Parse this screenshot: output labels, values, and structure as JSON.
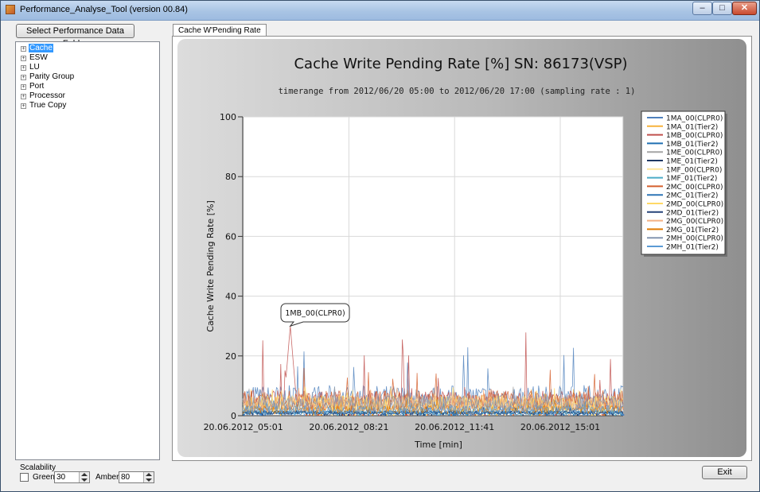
{
  "window": {
    "title": "Performance_Analyse_Tool (version 00.84)",
    "controls": {
      "minimize": "–",
      "maximize": "□",
      "close": "✕"
    }
  },
  "left_panel": {
    "select_button": "Select  Performance Data Folder",
    "tree": [
      {
        "label": "Cache",
        "selected": true
      },
      {
        "label": "ESW",
        "selected": false
      },
      {
        "label": "LU",
        "selected": false
      },
      {
        "label": "Parity Group",
        "selected": false
      },
      {
        "label": "Port",
        "selected": false
      },
      {
        "label": "Processor",
        "selected": false
      },
      {
        "label": "True Copy",
        "selected": false
      }
    ],
    "scalability": {
      "title": "Scalability",
      "checked": false,
      "green_label": "Green",
      "green_value": "30",
      "amber_label": "Amber",
      "amber_value": "80"
    }
  },
  "tabs": [
    {
      "label": "Cache W'Pending Rate",
      "active": true
    }
  ],
  "exit_button": "Exit",
  "chart_data": {
    "type": "line",
    "title": "Cache Write Pending Rate [%]  SN: 86173(VSP)",
    "subtitle": "timerange from 2012/06/20 05:00 to 2012/06/20 17:00 (sampling rate : 1)",
    "xlabel": "Time [min]",
    "ylabel": "Cache Write Pending Rate [%]",
    "ylim": [
      0,
      100
    ],
    "yticks": [
      0,
      20,
      40,
      60,
      80,
      100
    ],
    "xlim_minutes": [
      0,
      720
    ],
    "xticks": [
      {
        "label": "20.06.2012_05:01",
        "minute": 1
      },
      {
        "label": "20.06.2012_08:21",
        "minute": 201
      },
      {
        "label": "20.06.2012_11:41",
        "minute": 401
      },
      {
        "label": "20.06.2012_15:01",
        "minute": 601
      }
    ],
    "grid": true,
    "legend_position": "right",
    "annotation": {
      "text": "1MB_00(CLPR0)",
      "series": "1MB_00(CLPR0)",
      "minute": 90,
      "value": 30
    },
    "series": [
      {
        "name": "1MA_00(CLPR0)",
        "color": "#4f81bd",
        "typical": 6,
        "peak": 23
      },
      {
        "name": "1MA_01(Tier2)",
        "color": "#f7b23b",
        "typical": 3,
        "peak": 9
      },
      {
        "name": "1MB_00(CLPR0)",
        "color": "#c0504d",
        "typical": 5,
        "peak": 30
      },
      {
        "name": "1MB_01(Tier2)",
        "color": "#1f6fb2",
        "typical": 1,
        "peak": 4
      },
      {
        "name": "1ME_00(CLPR0)",
        "color": "#a5a5a5",
        "typical": 4,
        "peak": 10
      },
      {
        "name": "1ME_01(Tier2)",
        "color": "#1f3864",
        "typical": 1,
        "peak": 3
      },
      {
        "name": "1MF_00(CLPR0)",
        "color": "#ffe699",
        "typical": 4,
        "peak": 9
      },
      {
        "name": "1MF_01(Tier2)",
        "color": "#4bacc6",
        "typical": 1,
        "peak": 3
      },
      {
        "name": "2MC_00(CLPR0)",
        "color": "#d55f2c",
        "typical": 5,
        "peak": 16
      },
      {
        "name": "2MC_01(Tier2)",
        "color": "#2e75b6",
        "typical": 1,
        "peak": 3
      },
      {
        "name": "2MD_00(CLPR0)",
        "color": "#ffd966",
        "typical": 4,
        "peak": 10
      },
      {
        "name": "2MD_01(Tier2)",
        "color": "#264478",
        "typical": 1,
        "peak": 3
      },
      {
        "name": "2MG_00(CLPR0)",
        "color": "#f4b183",
        "typical": 4,
        "peak": 10
      },
      {
        "name": "2MG_01(Tier2)",
        "color": "#e07b00",
        "typical": 2,
        "peak": 6
      },
      {
        "name": "2MH_00(CLPR0)",
        "color": "#8496b0",
        "typical": 4,
        "peak": 11
      },
      {
        "name": "2MH_01(Tier2)",
        "color": "#5b9bd5",
        "typical": 2,
        "peak": 5
      }
    ]
  }
}
